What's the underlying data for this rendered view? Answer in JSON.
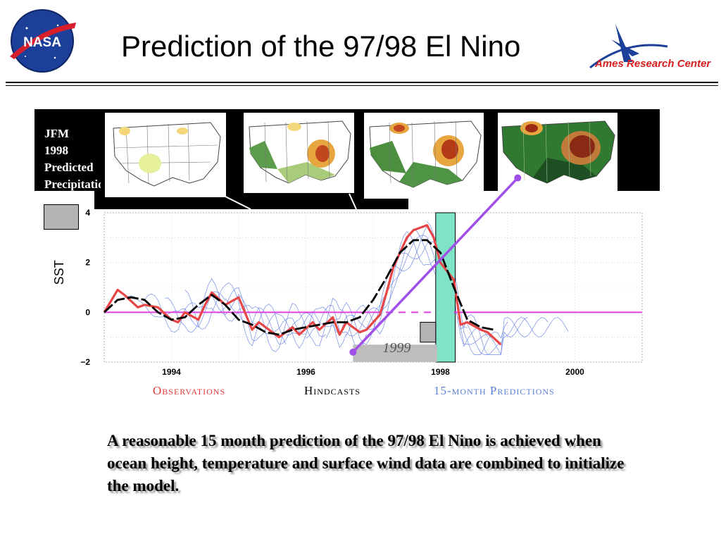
{
  "header": {
    "title": "Prediction of the 97/98 El Nino",
    "nasa_logo_text": "NASA",
    "ames_logo_text": "Ames Research Center"
  },
  "panel": {
    "label_lines": [
      "JFM",
      "1998",
      "Predicted",
      "Precipitation"
    ],
    "maps": [
      {
        "name": "map-1",
        "shading": "light"
      },
      {
        "name": "map-2",
        "shading": "medium"
      },
      {
        "name": "map-3",
        "shading": "strong"
      },
      {
        "name": "map-4",
        "shading": "observed"
      }
    ]
  },
  "chart_data": {
    "type": "line",
    "ylabel": "SST",
    "xlabel": "",
    "xlim": [
      1993.0,
      2001.0
    ],
    "ylim": [
      -2,
      4
    ],
    "x_ticks": [
      1994,
      1996,
      1998,
      2000
    ],
    "y_ticks": [
      -2,
      0,
      2,
      4
    ],
    "x_tick_labels": [
      "1994",
      "1996",
      "1998",
      "2000"
    ],
    "y_tick_labels": [
      "−2",
      "0",
      "2",
      "4"
    ],
    "highlight_band": {
      "x_start": 1997.93,
      "x_end": 1998.22,
      "color": "#7fe3c8"
    },
    "inset_label": "1999",
    "colors": {
      "observations": "#e84646",
      "hindcast": "#000000",
      "predictions": "#5a78e0",
      "zero_line": "#e040e0",
      "arrow": "#a050e8"
    },
    "series": [
      {
        "name": "Observations",
        "color": "#e84646",
        "x": [
          1993.0,
          1993.2,
          1993.3,
          1993.5,
          1993.6,
          1993.8,
          1994.0,
          1994.1,
          1994.2,
          1994.4,
          1994.5,
          1994.6,
          1994.8,
          1995.0,
          1995.2,
          1995.3,
          1995.4,
          1995.6,
          1995.8,
          1995.9,
          1996.1,
          1996.2,
          1996.4,
          1996.5,
          1996.6,
          1996.8,
          1996.9,
          1997.1,
          1997.2,
          1997.3,
          1997.5,
          1997.6,
          1997.8,
          1997.9,
          1998.0,
          1998.2,
          1998.3,
          1998.4,
          1998.6,
          1998.7,
          1998.9
        ],
        "y": [
          0.0,
          0.9,
          0.7,
          0.2,
          0.3,
          0.2,
          -0.3,
          -0.4,
          0.0,
          -0.3,
          0.3,
          0.8,
          0.3,
          0.6,
          -0.7,
          -0.4,
          -0.6,
          -1.0,
          -0.6,
          -0.9,
          -0.4,
          -0.7,
          -0.2,
          -0.9,
          -0.4,
          -0.8,
          -0.7,
          -0.1,
          0.8,
          1.8,
          3.0,
          3.3,
          3.5,
          3.0,
          2.0,
          1.3,
          -0.5,
          -0.4,
          -0.7,
          -0.8,
          -1.3
        ]
      },
      {
        "name": "Hindcasts",
        "color": "#000000",
        "x": [
          1993.0,
          1993.2,
          1993.4,
          1993.6,
          1993.8,
          1994.0,
          1994.2,
          1994.4,
          1994.6,
          1994.8,
          1995.0,
          1995.2,
          1995.4,
          1995.6,
          1995.8,
          1996.0,
          1996.2,
          1996.4,
          1996.6,
          1996.8,
          1997.0,
          1997.2,
          1997.4,
          1997.6,
          1997.8,
          1998.0,
          1998.2,
          1998.4,
          1998.6,
          1998.8
        ],
        "y": [
          0.0,
          0.5,
          0.6,
          0.5,
          0.0,
          -0.3,
          -0.2,
          0.3,
          0.7,
          0.3,
          -0.3,
          -0.5,
          -0.8,
          -0.9,
          -0.7,
          -0.6,
          -0.5,
          -0.4,
          -0.4,
          -0.2,
          0.5,
          1.4,
          2.4,
          2.9,
          2.9,
          2.4,
          1.0,
          -0.3,
          -0.6,
          -0.7
        ]
      },
      {
        "name": "15-month Predictions",
        "color": "#5a78e0",
        "x": [],
        "y": []
      }
    ]
  },
  "legend": {
    "observations": "Observations",
    "hindcasts": "Hindcasts",
    "predictions": "15-month Predictions"
  },
  "caption": "A reasonable 15 month prediction of the 97/98 El Nino is achieved when ocean height, temperature and surface wind data are combined to initialize the model."
}
